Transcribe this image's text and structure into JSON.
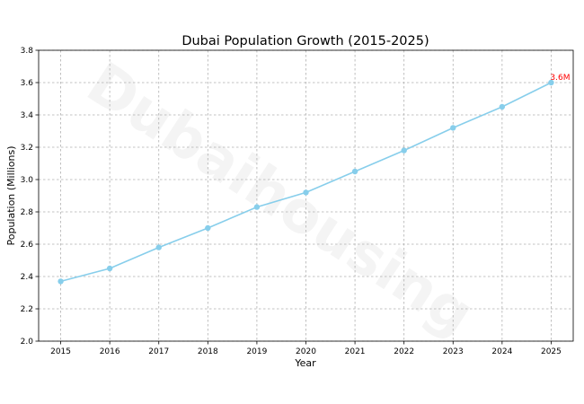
{
  "chart_data": {
    "type": "line",
    "title": "Dubai Population Growth (2015-2025)",
    "xlabel": "Year",
    "ylabel": "Population (Millions)",
    "x": [
      2015,
      2016,
      2017,
      2018,
      2019,
      2020,
      2021,
      2022,
      2023,
      2024,
      2025
    ],
    "x_tick_labels": [
      "2015",
      "2016",
      "2017",
      "2018",
      "2019",
      "2020",
      "2021",
      "2022",
      "2023",
      "2024",
      "2025"
    ],
    "series": [
      {
        "values": [
          2.37,
          2.45,
          2.58,
          2.7,
          2.83,
          2.92,
          3.05,
          3.18,
          3.32,
          3.45,
          3.6
        ],
        "color": "#87CEEB",
        "marker": "circle"
      }
    ],
    "ylim": [
      2.0,
      3.8
    ],
    "y_ticks": [
      2.0,
      2.2,
      2.4,
      2.6,
      2.8,
      3.0,
      3.2,
      3.4,
      3.6,
      3.8
    ],
    "y_tick_labels": [
      "2.0",
      "2.2",
      "2.4",
      "2.6",
      "2.8",
      "3.0",
      "3.2",
      "3.4",
      "3.6",
      "3.8"
    ],
    "grid": true,
    "annotation": {
      "text": "3.6M",
      "x": 2025,
      "y": 3.6,
      "color": "#ff0000"
    },
    "watermark": "Dubaihousing"
  }
}
